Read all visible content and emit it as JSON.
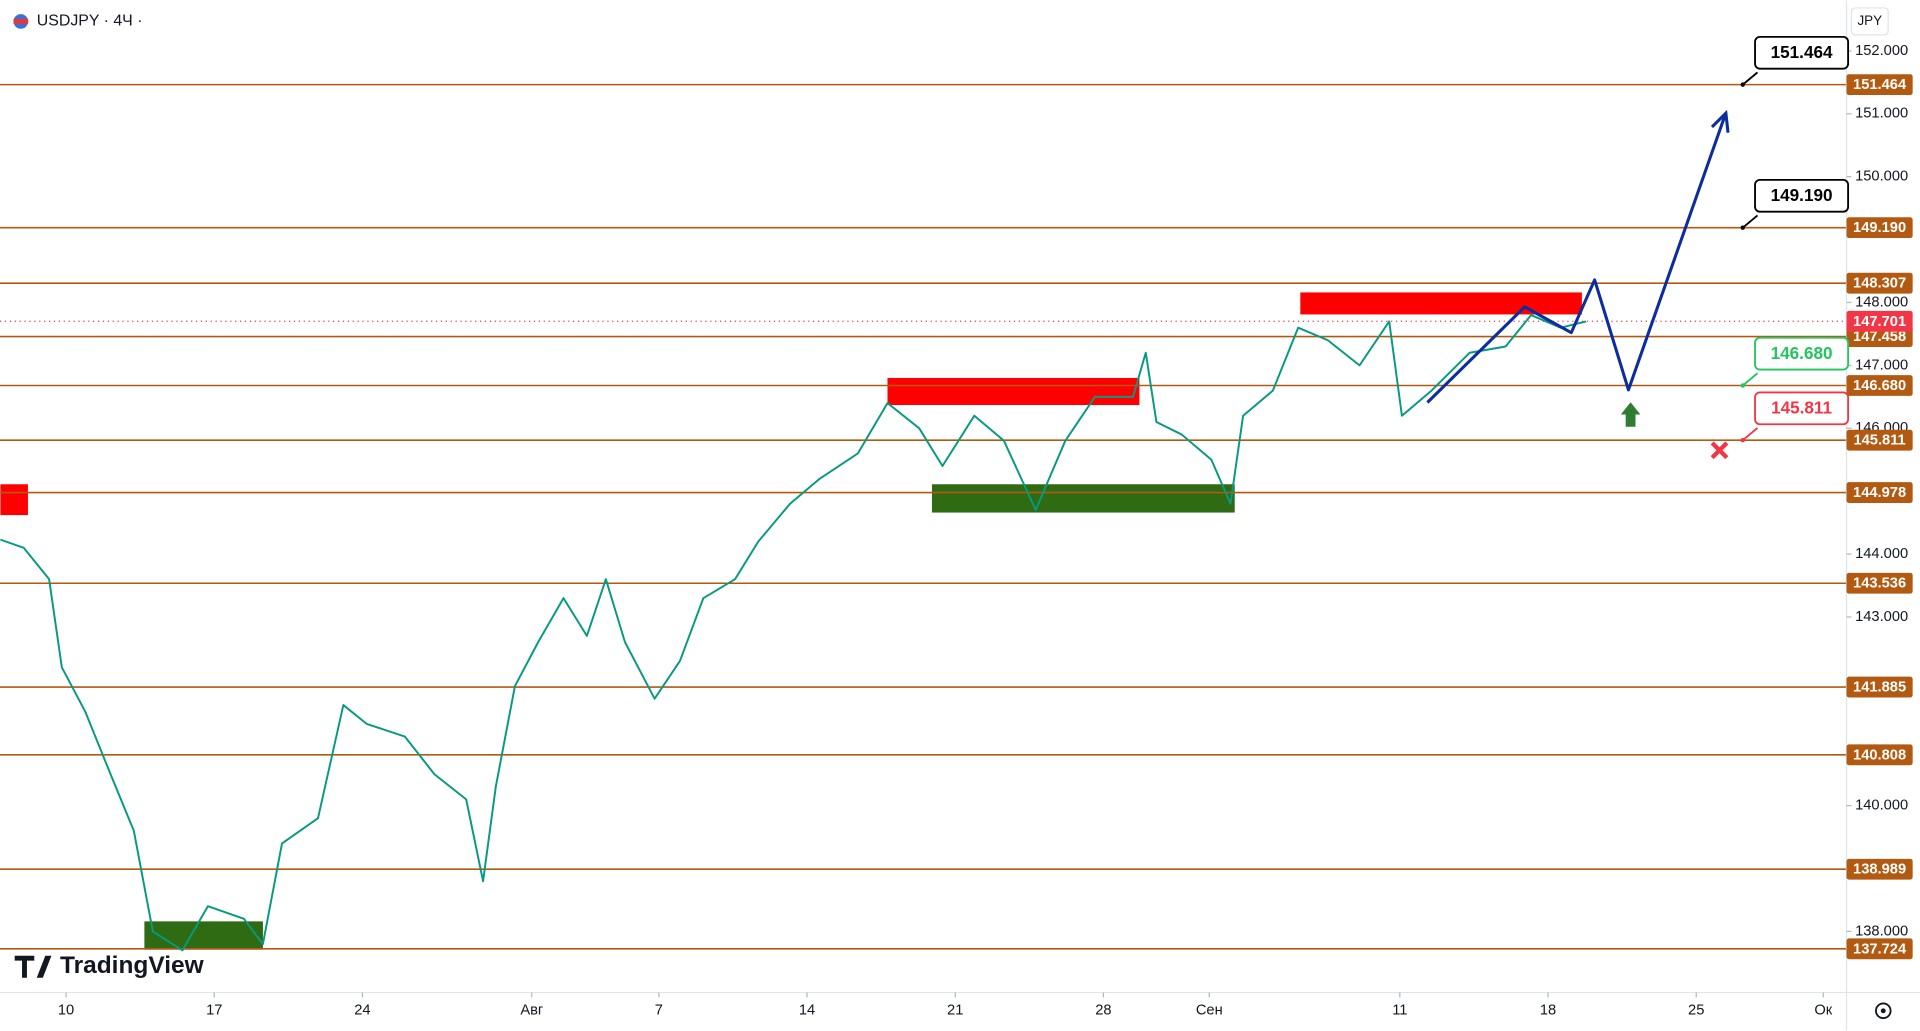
{
  "chart_data": {
    "type": "line",
    "title": "USDJPY · 4Ч ·",
    "currency": "JPY",
    "brand": "TradingView",
    "color": "#089981",
    "x": [
      6.9,
      8.0,
      9.2,
      9.8,
      10.9,
      12.1,
      13.2,
      14.1,
      15.5,
      16.7,
      18.4,
      19.3,
      20.2,
      21.9,
      23.1,
      24.2,
      26.0,
      27.4,
      28.9,
      29.7,
      30.3,
      31.2,
      32.3,
      33.5,
      34.6,
      35.5,
      36.4,
      37.8,
      39.0,
      40.1,
      41.6,
      42.7,
      44.2,
      45.6,
      47.4,
      48.8,
      50.3,
      51.4,
      52.9,
      54.3,
      55.8,
      57.2,
      58.6,
      60.4,
      61.0,
      61.5,
      62.7,
      64.1,
      65.0,
      65.6,
      67.0,
      68.2,
      69.6,
      71.1,
      72.5,
      73.1,
      74.5,
      76.3,
      78.0,
      79.2,
      80.6,
      81.8
    ],
    "values": [
      144.23,
      144.1,
      143.6,
      142.2,
      141.5,
      140.5,
      139.6,
      138.0,
      137.7,
      138.4,
      138.2,
      137.8,
      139.4,
      139.8,
      141.6,
      141.3,
      141.1,
      140.5,
      140.1,
      138.8,
      140.3,
      141.9,
      142.6,
      143.3,
      142.7,
      143.6,
      142.6,
      141.7,
      142.3,
      143.3,
      143.6,
      144.2,
      144.8,
      145.2,
      145.6,
      146.4,
      146.0,
      145.4,
      146.2,
      145.8,
      144.7,
      145.8,
      146.5,
      146.5,
      147.2,
      146.1,
      145.9,
      145.5,
      144.8,
      146.2,
      146.6,
      147.6,
      147.4,
      147.0,
      147.7,
      146.2,
      146.6,
      147.2,
      147.3,
      147.8,
      147.6,
      147.7
    ],
    "xlim": [
      6.88,
      94.1
    ],
    "ylim": [
      137.03,
      152.8
    ],
    "xticks": [
      10,
      17,
      24,
      {
        "value": 32,
        "label": "Авг"
      },
      7,
      14,
      21,
      28,
      {
        "value": 64,
        "label": "Сен"
      },
      11,
      18,
      25,
      {
        "value": 93,
        "label": "Ок"
      }
    ],
    "xtick_values": [
      10,
      17,
      24,
      32,
      38,
      45,
      52,
      59,
      64,
      73,
      80,
      87,
      93
    ],
    "yticks": [
      {
        "value": 152,
        "label": "152.000"
      },
      {
        "value": 151,
        "label": "151.000"
      },
      {
        "value": 150,
        "label": "150.000"
      },
      {
        "value": 148,
        "label": "148.000"
      },
      {
        "value": 147,
        "label": "147.000"
      },
      {
        "value": 146,
        "label": "146.000"
      },
      {
        "value": 144,
        "label": "144.000"
      },
      {
        "value": 143,
        "label": "143.000"
      },
      {
        "value": 140,
        "label": "140.000"
      },
      {
        "value": 138,
        "label": "138.000"
      }
    ],
    "level_color": "#b35a12",
    "levels": [
      {
        "value": 151.464,
        "callout": "#000000"
      },
      {
        "value": 149.19,
        "label": "149.190",
        "callout": "#000000"
      },
      {
        "value": 148.307
      },
      {
        "value": 147.458
      },
      {
        "value": 146.68,
        "label": "146.680",
        "callout": "#22c55e"
      },
      {
        "value": 145.811,
        "callout": "#f23645"
      },
      {
        "value": 144.978
      },
      {
        "value": 143.536
      },
      {
        "value": 141.885
      },
      {
        "value": 140.808
      },
      {
        "value": 138.989
      },
      {
        "value": 137.724
      }
    ],
    "callout_x": 89.2,
    "current_price": 147.701,
    "current_color": "#f23645",
    "zones": [
      {
        "color": "#ff0000",
        "x": [
          6.9,
          8.2
        ],
        "y": [
          144.62,
          145.11
        ]
      },
      {
        "color": "#ff0000",
        "x": [
          48.8,
          60.7
        ],
        "y": [
          146.37,
          146.8
        ]
      },
      {
        "color": "#ff0000",
        "x": [
          68.3,
          81.6
        ],
        "y": [
          147.81,
          148.16
        ]
      },
      {
        "color": "#2e6b12",
        "x": [
          13.7,
          19.3
        ],
        "y": [
          137.71,
          138.16
        ]
      },
      {
        "color": "#2e6b12",
        "x": [
          50.9,
          65.2
        ],
        "y": [
          144.66,
          145.11
        ]
      }
    ],
    "projection": {
      "color": "#0d2c9e",
      "x": [
        74.3,
        78.9,
        81.1,
        82.2,
        83.8,
        88.4
      ],
      "values": [
        146.41,
        147.93,
        147.52,
        148.36,
        146.61,
        151.01
      ]
    },
    "buy_marker": {
      "x": 83.9,
      "value": 146.2,
      "color": "#2e7d32"
    },
    "stop_marker": {
      "x": 88.1,
      "value": 145.65,
      "color": "#f23645"
    }
  }
}
